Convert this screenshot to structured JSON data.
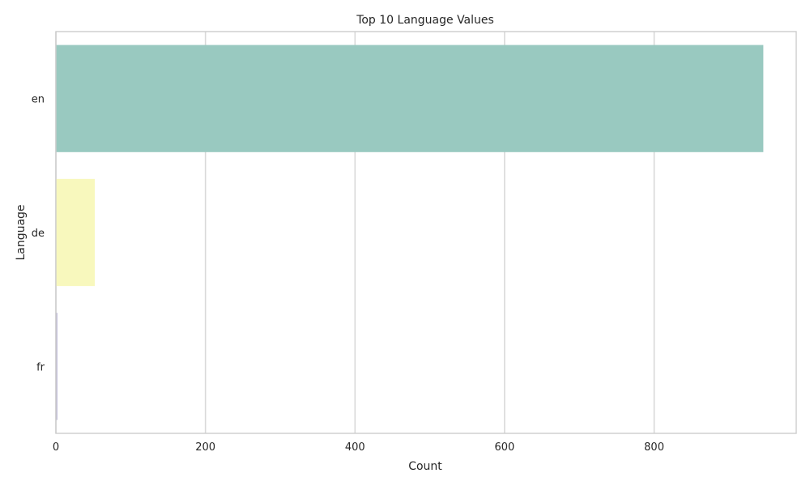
{
  "chart_data": {
    "type": "bar",
    "orientation": "horizontal",
    "title": "Top 10 Language Values",
    "xlabel": "Count",
    "ylabel": "Language",
    "categories": [
      "en",
      "de",
      "fr"
    ],
    "values": [
      946,
      52,
      2
    ],
    "colors": [
      "#99c9c0",
      "#f8f8bd",
      "#bcb7d5"
    ],
    "xlim": [
      0,
      990
    ],
    "xticks": [
      0,
      200,
      400,
      600,
      800
    ],
    "grid": "vertical",
    "legend": "none"
  }
}
